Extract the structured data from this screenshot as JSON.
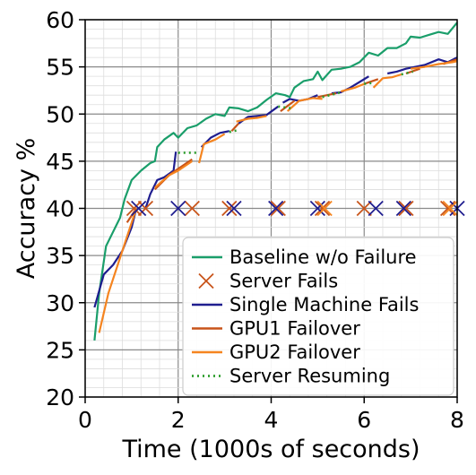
{
  "chart_data": {
    "type": "line",
    "title": "",
    "xlabel": "Time (1000s of seconds)",
    "ylabel": "Accuracy %",
    "xlim": [
      0,
      8
    ],
    "ylim": [
      20,
      60
    ],
    "xticks": [
      0,
      2,
      4,
      6,
      8
    ],
    "yticks": [
      20,
      25,
      30,
      35,
      40,
      45,
      50,
      55,
      60
    ],
    "grid": true,
    "legend_position": "lower-right",
    "legend": [
      {
        "label": "Baseline w/o Failure",
        "color": "#1a9e6a",
        "style": "solid"
      },
      {
        "label": "Server Fails",
        "color": "#c8541a",
        "style": "x-marker"
      },
      {
        "label": "Single Machine Fails",
        "color": "#1f1d8f",
        "style": "solid"
      },
      {
        "label": "GPU1 Failover",
        "color": "#c8541a",
        "style": "solid"
      },
      {
        "label": "GPU2 Failover",
        "color": "#f5841f",
        "style": "solid"
      },
      {
        "label": "Server Resuming",
        "color": "#2e9e2e",
        "style": "dotted"
      }
    ],
    "series": [
      {
        "name": "Baseline w/o Failure",
        "color": "#1a9e6a",
        "style": "solid",
        "points": [
          [
            0.2,
            26
          ],
          [
            0.3,
            31
          ],
          [
            0.45,
            36
          ],
          [
            0.6,
            37.5
          ],
          [
            0.75,
            39
          ],
          [
            0.85,
            41
          ],
          [
            1,
            43
          ],
          [
            1.2,
            44
          ],
          [
            1.4,
            44.8
          ],
          [
            1.5,
            45
          ],
          [
            1.55,
            46.5
          ],
          [
            1.7,
            47.3
          ],
          [
            1.9,
            48
          ],
          [
            2,
            47.5
          ],
          [
            2.2,
            48.5
          ],
          [
            2.4,
            48.8
          ],
          [
            2.6,
            49.5
          ],
          [
            2.8,
            50
          ],
          [
            3,
            49.8
          ],
          [
            3.1,
            50.7
          ],
          [
            3.3,
            50.6
          ],
          [
            3.5,
            50.3
          ],
          [
            3.7,
            50.7
          ],
          [
            3.9,
            51.5
          ],
          [
            4.1,
            52.2
          ],
          [
            4.3,
            52
          ],
          [
            4.4,
            51.8
          ],
          [
            4.5,
            52.8
          ],
          [
            4.7,
            53.5
          ],
          [
            4.9,
            53.7
          ],
          [
            5.0,
            54.5
          ],
          [
            5.1,
            53.6
          ],
          [
            5.3,
            54.7
          ],
          [
            5.5,
            54.8
          ],
          [
            5.7,
            55
          ],
          [
            5.9,
            55.5
          ],
          [
            6.1,
            56.5
          ],
          [
            6.3,
            56.2
          ],
          [
            6.5,
            57
          ],
          [
            6.7,
            57
          ],
          [
            6.9,
            57.5
          ],
          [
            7.0,
            58.2
          ],
          [
            7.2,
            58.1
          ],
          [
            7.4,
            58.4
          ],
          [
            7.6,
            58.7
          ],
          [
            7.8,
            58.5
          ],
          [
            8.0,
            59.7
          ]
        ]
      },
      {
        "name": "Single Machine Fails",
        "color": "#1f1d8f",
        "style": "solid",
        "segments": [
          [
            [
              0.2,
              29.5
            ],
            [
              0.4,
              33
            ],
            [
              0.6,
              34
            ],
            [
              0.8,
              35.5
            ],
            [
              1.0,
              38
            ],
            [
              1.1,
              40
            ]
          ],
          [
            [
              1.3,
              40
            ],
            [
              1.4,
              41.5
            ],
            [
              1.55,
              43
            ],
            [
              1.7,
              43.3
            ],
            [
              1.9,
              44
            ],
            [
              1.95,
              46
            ]
          ],
          [
            [
              2.5,
              46.5
            ],
            [
              2.7,
              47.5
            ],
            [
              2.9,
              48
            ],
            [
              3.1,
              48.2
            ]
          ],
          [
            [
              3.3,
              49
            ],
            [
              3.5,
              49.7
            ],
            [
              3.7,
              49.8
            ],
            [
              3.9,
              49.9
            ],
            [
              4.15,
              50.8
            ]
          ],
          [
            [
              4.25,
              51.2
            ],
            [
              4.4,
              51.6
            ],
            [
              4.6,
              51.4
            ],
            [
              4.8,
              51.6
            ],
            [
              5.0,
              52
            ]
          ],
          [
            [
              5.3,
              52.2
            ],
            [
              5.5,
              52.3
            ],
            [
              5.7,
              52.8
            ],
            [
              5.9,
              53.4
            ],
            [
              6.1,
              54
            ]
          ],
          [
            [
              6.5,
              54.3
            ],
            [
              6.7,
              54.5
            ],
            [
              6.9,
              54.8
            ],
            [
              7.1,
              55
            ],
            [
              7.3,
              55.2
            ],
            [
              7.6,
              55.8
            ],
            [
              7.8,
              55.5
            ],
            [
              8.0,
              56
            ]
          ]
        ]
      },
      {
        "name": "GPU1 Failover",
        "color": "#c8541a",
        "style": "solid",
        "segments": [
          [
            [
              0.9,
              38.5
            ],
            [
              1.1,
              40
            ]
          ],
          [
            [
              1.5,
              42
            ],
            [
              1.8,
              43.5
            ],
            [
              2.0,
              44.2
            ],
            [
              2.3,
              45.2
            ]
          ],
          [
            [
              3.15,
              48.2
            ],
            [
              3.3,
              49
            ]
          ],
          [
            [
              4.2,
              50.3
            ],
            [
              4.5,
              51.4
            ]
          ],
          [
            [
              5.0,
              51.8
            ],
            [
              5.4,
              52.2
            ]
          ],
          [
            [
              6.0,
              53.2
            ],
            [
              6.3,
              53.7
            ]
          ],
          [
            [
              6.9,
              54.3
            ],
            [
              7.2,
              54.8
            ]
          ],
          [
            [
              7.7,
              55.3
            ],
            [
              8.0,
              55.8
            ]
          ]
        ]
      },
      {
        "name": "GPU2 Failover",
        "color": "#f5841f",
        "style": "solid",
        "segments": [
          [
            [
              0.3,
              26.8
            ],
            [
              0.5,
              31
            ],
            [
              0.7,
              34
            ],
            [
              0.9,
              37
            ],
            [
              1.1,
              40
            ]
          ],
          [
            [
              1.5,
              42.2
            ],
            [
              1.8,
              43.5
            ],
            [
              2.0,
              44
            ],
            [
              2.3,
              45
            ]
          ],
          [
            [
              2.45,
              44.8
            ],
            [
              2.55,
              46.8
            ],
            [
              2.8,
              47.3
            ],
            [
              3.0,
              47.9
            ]
          ],
          [
            [
              3.25,
              49.2
            ],
            [
              3.5,
              49.5
            ],
            [
              3.7,
              49.6
            ],
            [
              3.9,
              49.8
            ]
          ],
          [
            [
              4.35,
              50.3
            ],
            [
              4.6,
              51.4
            ],
            [
              4.9,
              51.7
            ],
            [
              5.1,
              51.6
            ]
          ],
          [
            [
              5.5,
              52.4
            ],
            [
              5.8,
              52.8
            ],
            [
              6.0,
              53.2
            ]
          ],
          [
            [
              6.2,
              52.8
            ],
            [
              6.4,
              53.8
            ],
            [
              6.6,
              53.9
            ],
            [
              6.8,
              54.2
            ]
          ],
          [
            [
              7.0,
              54.8
            ],
            [
              7.3,
              55
            ],
            [
              7.6,
              55.3
            ],
            [
              7.9,
              55.5
            ],
            [
              8.0,
              55.6
            ]
          ]
        ]
      },
      {
        "name": "Server Resuming",
        "color": "#2e9e2e",
        "style": "dotted",
        "segments": [
          [
            [
              2.0,
              45.9
            ],
            [
              2.45,
              45.9
            ]
          ],
          [
            [
              3.1,
              48.1
            ],
            [
              3.3,
              48.3
            ]
          ],
          [
            [
              4.15,
              50.8
            ],
            [
              4.45,
              50.6
            ]
          ],
          [
            [
              5.1,
              51.8
            ],
            [
              5.5,
              52.3
            ]
          ],
          [
            [
              6.0,
              53.2
            ],
            [
              6.2,
              53.3
            ]
          ],
          [
            [
              6.8,
              54.2
            ],
            [
              7.05,
              54.5
            ]
          ]
        ]
      }
    ],
    "markers": [
      {
        "name": "Server Fails",
        "color": "#c8541a",
        "points": [
          [
            1.05,
            40
          ],
          [
            1.3,
            40
          ],
          [
            2.3,
            40
          ],
          [
            3.1,
            40
          ],
          [
            4.15,
            40
          ],
          [
            5.1,
            40
          ],
          [
            6.0,
            40
          ],
          [
            6.9,
            40
          ],
          [
            7.8,
            40
          ]
        ]
      },
      {
        "name": "Single Machine Fails",
        "color": "#1f1d8f",
        "points": [
          [
            1.15,
            40
          ],
          [
            2.0,
            40
          ],
          [
            3.2,
            40
          ],
          [
            4.1,
            40
          ],
          [
            5.0,
            40
          ],
          [
            6.25,
            40
          ],
          [
            6.85,
            40
          ],
          [
            8.0,
            40
          ]
        ]
      },
      {
        "name": "GPU2 Failover",
        "color": "#f5841f",
        "points": [
          [
            5.15,
            40
          ],
          [
            7.85,
            40
          ]
        ]
      }
    ]
  }
}
